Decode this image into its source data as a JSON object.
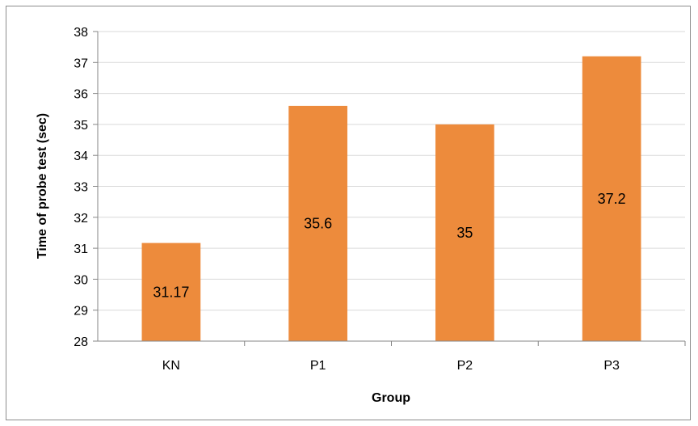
{
  "chart_data": {
    "type": "bar",
    "title": "",
    "xlabel": "Group",
    "ylabel": "Time of probe test (sec)",
    "categories": [
      "KN",
      "P1",
      "P2",
      "P3"
    ],
    "values": [
      31.17,
      35.6,
      35,
      37.2
    ],
    "data_labels": [
      "31.17",
      "35.6",
      "35",
      "37.2"
    ],
    "ylim": [
      28,
      38
    ],
    "yticks": [
      "28",
      "29",
      "30",
      "31",
      "32",
      "33",
      "34",
      "35",
      "36",
      "37",
      "38"
    ],
    "grid": true,
    "legend": "none",
    "bar_color": "#ed8b3c",
    "gridline_color": "#d9d9d9",
    "axis_color": "#868686"
  }
}
